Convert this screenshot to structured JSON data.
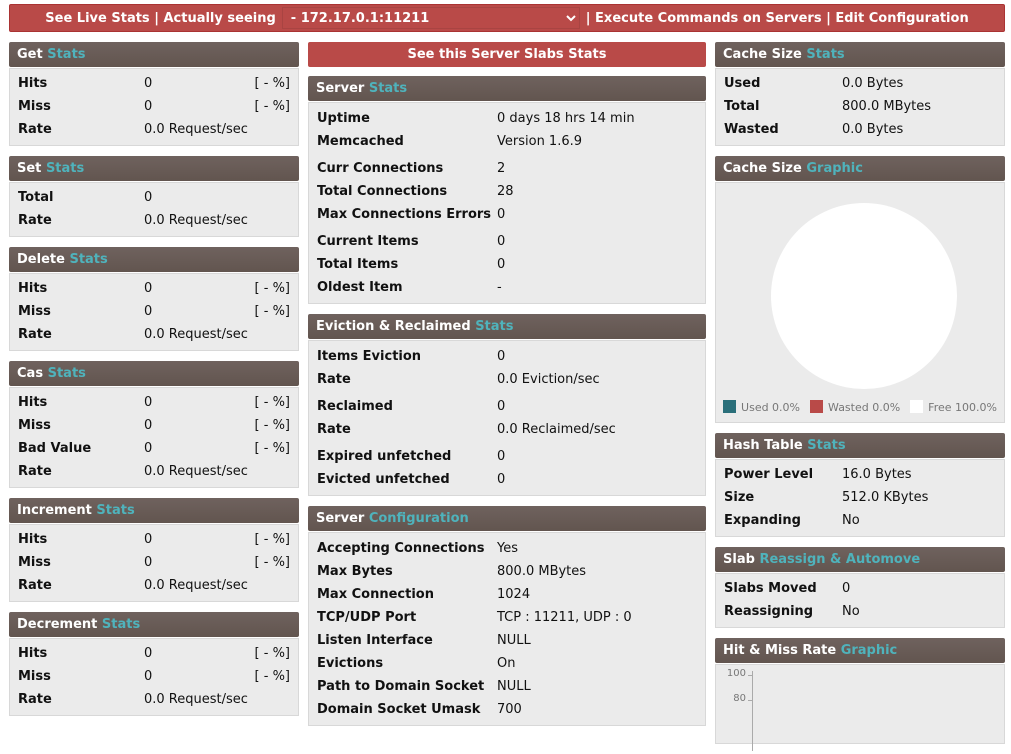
{
  "topbar": {
    "live": "See Live Stats | Actually seeing",
    "server": " - 172.17.0.1:11211",
    "links": "| Execute Commands on Servers | Edit Configuration"
  },
  "left": [
    {
      "t1": "Get",
      "t2": "Stats",
      "rows": [
        [
          "Hits",
          "0",
          "[ - %]"
        ],
        [
          "Miss",
          "0",
          "[ - %]"
        ],
        [
          "Rate",
          "0.0 Request/sec",
          ""
        ]
      ]
    },
    {
      "t1": "Set",
      "t2": "Stats",
      "rows": [
        [
          "Total",
          "0",
          ""
        ],
        [
          "Rate",
          "0.0 Request/sec",
          ""
        ]
      ]
    },
    {
      "t1": "Delete",
      "t2": "Stats",
      "rows": [
        [
          "Hits",
          "0",
          "[ - %]"
        ],
        [
          "Miss",
          "0",
          "[ - %]"
        ],
        [
          "Rate",
          "0.0 Request/sec",
          ""
        ]
      ]
    },
    {
      "t1": "Cas",
      "t2": "Stats",
      "rows": [
        [
          "Hits",
          "0",
          "[ - %]"
        ],
        [
          "Miss",
          "0",
          "[ - %]"
        ],
        [
          "Bad Value",
          "0",
          "[ - %]"
        ],
        [
          "Rate",
          "0.0 Request/sec",
          ""
        ]
      ]
    },
    {
      "t1": "Increment",
      "t2": "Stats",
      "rows": [
        [
          "Hits",
          "0",
          "[ - %]"
        ],
        [
          "Miss",
          "0",
          "[ - %]"
        ],
        [
          "Rate",
          "0.0 Request/sec",
          ""
        ]
      ]
    },
    {
      "t1": "Decrement",
      "t2": "Stats",
      "rows": [
        [
          "Hits",
          "0",
          "[ - %]"
        ],
        [
          "Miss",
          "0",
          "[ - %]"
        ],
        [
          "Rate",
          "0.0 Request/sec",
          ""
        ]
      ]
    }
  ],
  "middle": {
    "slabs_button": "See this Server Slabs Stats",
    "panels": [
      {
        "t1": "Server",
        "t2": "Stats",
        "groups": [
          [
            [
              "Uptime",
              "0 days 18 hrs 14 min"
            ],
            [
              "Memcached",
              "Version 1.6.9"
            ]
          ],
          [
            [
              "Curr Connections",
              "2"
            ],
            [
              "Total Connections",
              "28"
            ],
            [
              "Max Connections Errors",
              "0"
            ]
          ],
          [
            [
              "Current Items",
              "0"
            ],
            [
              "Total Items",
              "0"
            ],
            [
              "Oldest Item",
              "-"
            ]
          ]
        ]
      },
      {
        "t1": "Eviction & Reclaimed",
        "t2": "Stats",
        "groups": [
          [
            [
              "Items Eviction",
              "0"
            ],
            [
              "Rate",
              "0.0 Eviction/sec"
            ]
          ],
          [
            [
              "Reclaimed",
              "0"
            ],
            [
              "Rate",
              "0.0 Reclaimed/sec"
            ]
          ],
          [
            [
              "Expired unfetched",
              "0"
            ],
            [
              "Evicted unfetched",
              "0"
            ]
          ]
        ]
      },
      {
        "t1": "Server",
        "t2": "Configuration",
        "groups": [
          [
            [
              "Accepting Connections",
              "Yes"
            ],
            [
              "Max Bytes",
              "800.0 MBytes"
            ],
            [
              "Max Connection",
              "1024"
            ],
            [
              "TCP/UDP Port",
              "TCP : 11211, UDP : 0"
            ],
            [
              "Listen Interface",
              "NULL"
            ],
            [
              "Evictions",
              "On"
            ],
            [
              "Path to Domain Socket",
              "NULL"
            ],
            [
              "Domain Socket Umask",
              "700"
            ]
          ]
        ]
      }
    ]
  },
  "right": {
    "cache": {
      "t1": "Cache Size",
      "t2": "Stats",
      "rows": [
        [
          "Used",
          "0.0 Bytes"
        ],
        [
          "Total",
          "800.0 MBytes"
        ],
        [
          "Wasted",
          "0.0 Bytes"
        ]
      ]
    },
    "graphic": {
      "t1": "Cache Size",
      "t2": "Graphic",
      "legend": [
        {
          "label": "Used 0.0%",
          "color": "#2a6f7a",
          "value": 0
        },
        {
          "label": "Wasted 0.0%",
          "color": "#b94a48",
          "value": 0
        },
        {
          "label": "Free 100.0%",
          "color": "#ffffff",
          "value": 100
        }
      ]
    },
    "hash": {
      "t1": "Hash Table",
      "t2": "Stats",
      "rows": [
        [
          "Power Level",
          "16.0 Bytes"
        ],
        [
          "Size",
          "512.0 KBytes"
        ],
        [
          "Expanding",
          "No"
        ]
      ]
    },
    "slab": {
      "t1": "Slab",
      "t2": "Reassign & Automove",
      "rows": [
        [
          "Slabs Moved",
          "0"
        ],
        [
          "Reassigning",
          "No"
        ]
      ]
    },
    "hitmiss": {
      "t1": "Hit & Miss Rate",
      "t2": "Graphic",
      "yticks": [
        "100",
        "80"
      ]
    }
  },
  "colors": {
    "accent": "#4fb3bc",
    "header": "#665955",
    "red": "#b94a48"
  }
}
